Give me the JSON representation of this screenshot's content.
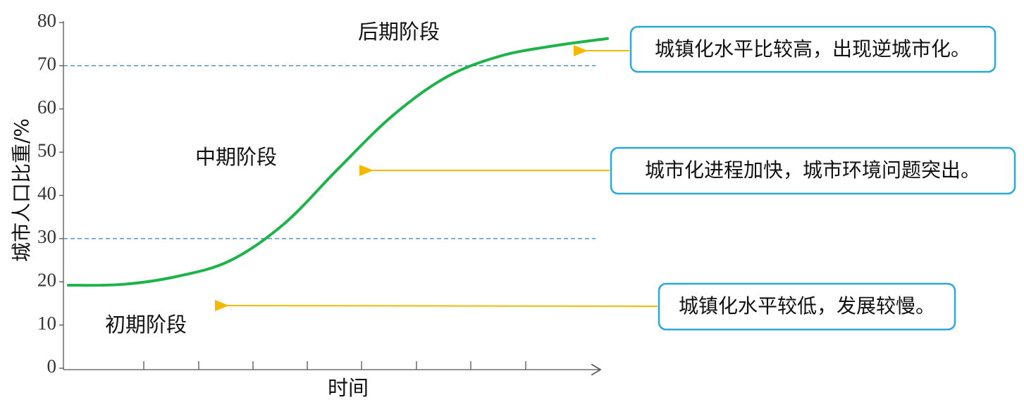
{
  "chart_data": {
    "type": "line",
    "y_label": "城市人口比重/%",
    "x_label": "时间",
    "categories": [
      null,
      null,
      null,
      null,
      null,
      null,
      null,
      null,
      null,
      null,
      null
    ],
    "values": [
      19.2,
      19.4,
      21.2,
      24.9,
      33.4,
      46.1,
      58.3,
      67.3,
      72.2,
      74.6,
      76.3
    ],
    "color": "#1db34a",
    "ylim": [
      0,
      80
    ],
    "yticks": [
      0,
      10,
      20,
      30,
      40,
      50,
      60,
      70,
      80
    ],
    "reference_lines": [
      30,
      70
    ],
    "stage_labels": [
      "后期阶段",
      "中期阶段",
      "初期阶段"
    ],
    "callouts": [
      "城镇化水平比较高，出现逆城市化。",
      "城市化进程加快，城市环境问题突出。",
      "城镇化水平较低，发展较慢。"
    ]
  }
}
